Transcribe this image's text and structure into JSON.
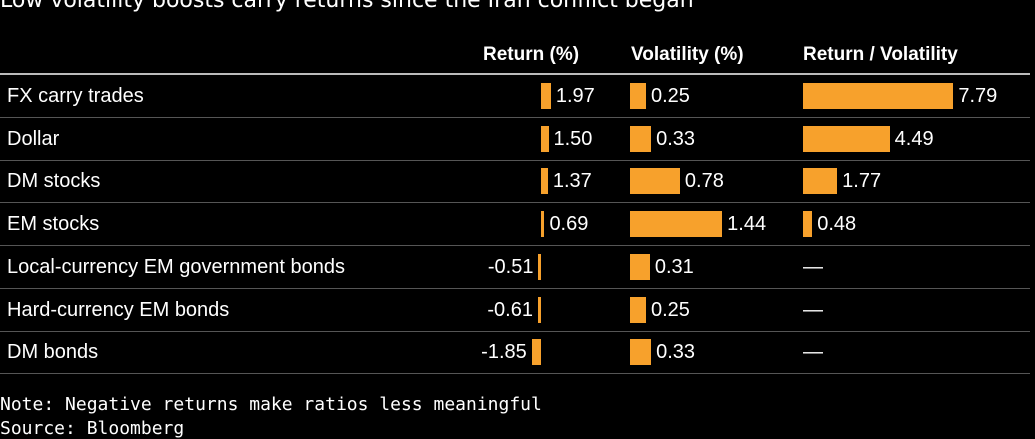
{
  "chart_data": {
    "type": "table",
    "title": "Low volatility boosts carry returns since the Iran conflict began",
    "columns": [
      "Return (%)",
      "Volatility (%)",
      "Return / Volatility"
    ],
    "rows": [
      {
        "label": "FX carry trades",
        "ret": 1.97,
        "ret_text": "1.97",
        "vol": 0.25,
        "vol_text": "0.25",
        "ratio": 7.79,
        "ratio_text": "7.79"
      },
      {
        "label": "Dollar",
        "ret": 1.5,
        "ret_text": "1.50",
        "vol": 0.33,
        "vol_text": "0.33",
        "ratio": 4.49,
        "ratio_text": "4.49"
      },
      {
        "label": "DM stocks",
        "ret": 1.37,
        "ret_text": "1.37",
        "vol": 0.78,
        "vol_text": "0.78",
        "ratio": 1.77,
        "ratio_text": "1.77"
      },
      {
        "label": "EM stocks",
        "ret": 0.69,
        "ret_text": "0.69",
        "vol": 1.44,
        "vol_text": "1.44",
        "ratio": 0.48,
        "ratio_text": "0.48"
      },
      {
        "label": "Local-currency EM government bonds",
        "ret": -0.51,
        "ret_text": "-0.51",
        "vol": 0.31,
        "vol_text": "0.31",
        "ratio": null,
        "ratio_text": "—"
      },
      {
        "label": "Hard-currency EM bonds",
        "ret": -0.61,
        "ret_text": "-0.61",
        "vol": 0.25,
        "vol_text": "0.25",
        "ratio": null,
        "ratio_text": "—"
      },
      {
        "label": "DM bonds",
        "ret": -1.85,
        "ret_text": "-1.85",
        "vol": 0.33,
        "vol_text": "0.33",
        "ratio": null,
        "ratio_text": "—"
      }
    ],
    "bar_color": "#f7a12c"
  },
  "note": "Note: Negative returns make ratios less meaningful",
  "source": "Source: Bloomberg"
}
